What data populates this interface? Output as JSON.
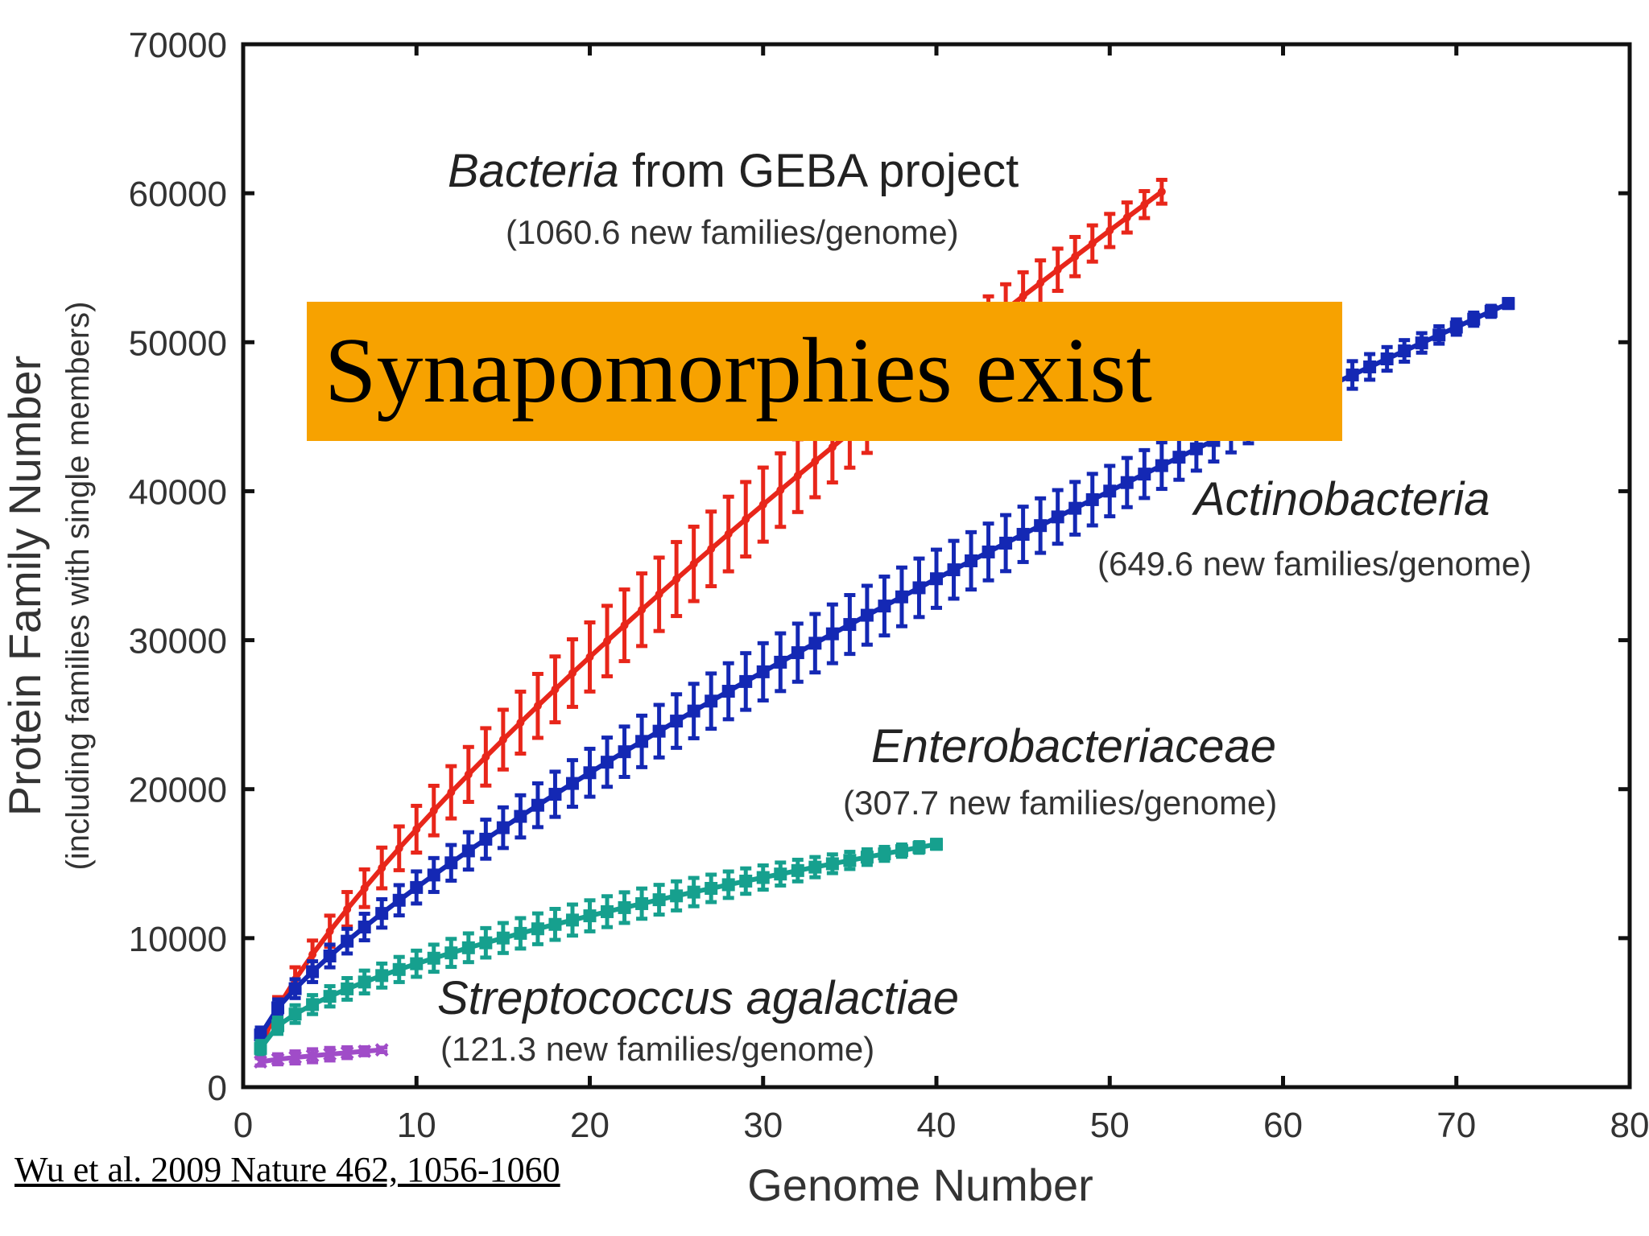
{
  "banner": {
    "text": "Synapomorphies exist",
    "color": "#f7a200"
  },
  "citation": "Wu et al. 2009 Nature 462, 1056-1060",
  "chart_data": {
    "type": "line",
    "xlabel": "Genome Number",
    "ylabel": "Protein Family Number",
    "ylabel_sub": "(including families with single members)",
    "xlim": [
      0,
      80
    ],
    "ylim": [
      0,
      70000
    ],
    "xticks": [
      0,
      10,
      20,
      30,
      40,
      50,
      60,
      70,
      80
    ],
    "yticks": [
      0,
      10000,
      20000,
      30000,
      40000,
      50000,
      60000,
      70000
    ],
    "grid": false,
    "annotations": [
      {
        "series": "Bacteria from GEBA project",
        "italic_part": "Bacteria",
        "plain_part": " from GEBA project",
        "sub": "(1060.6 new families/genome)"
      },
      {
        "series": "Actinobacteria",
        "italic_part": "Actinobacteria",
        "plain_part": "",
        "sub": "(649.6 new families/genome)"
      },
      {
        "series": "Enterobacteriaceae",
        "italic_part": "Enterobacteriaceae",
        "plain_part": "",
        "sub": "(307.7 new families/genome)"
      },
      {
        "series": "Streptococcus agalactiae",
        "italic_part": "Streptococcus agalactiae",
        "plain_part": "",
        "sub": "(121.3 new families/genome)"
      }
    ],
    "series": [
      {
        "name": "Bacteria from GEBA project",
        "color": "#e8261a",
        "marker": "bar",
        "n": 53,
        "y_first": 2700,
        "y_last": 60100,
        "exponent": 0.78,
        "err_first": 600,
        "err_last": 800,
        "err_peak": 2300
      },
      {
        "name": "Actinobacteria",
        "color": "#1428b4",
        "marker": "square",
        "n": 73,
        "y_first": 3500,
        "y_last": 52600,
        "exponent": 0.77,
        "err_first": 500,
        "err_last": 300,
        "err_peak": 2000
      },
      {
        "name": "Enterobacteriaceae",
        "color": "#16a08e",
        "marker": "square",
        "n": 40,
        "y_first": 2600,
        "y_last": 16300,
        "exponent": 0.6,
        "err_first": 500,
        "err_last": 300,
        "err_peak": 900
      },
      {
        "name": "Streptococcus agalactiae",
        "color": "#a04cc8",
        "marker": "x",
        "n": 8,
        "y_first": 1700,
        "y_last": 2500,
        "exponent": 0.8,
        "err_first": 250,
        "err_last": 150,
        "err_peak": 350
      }
    ]
  }
}
